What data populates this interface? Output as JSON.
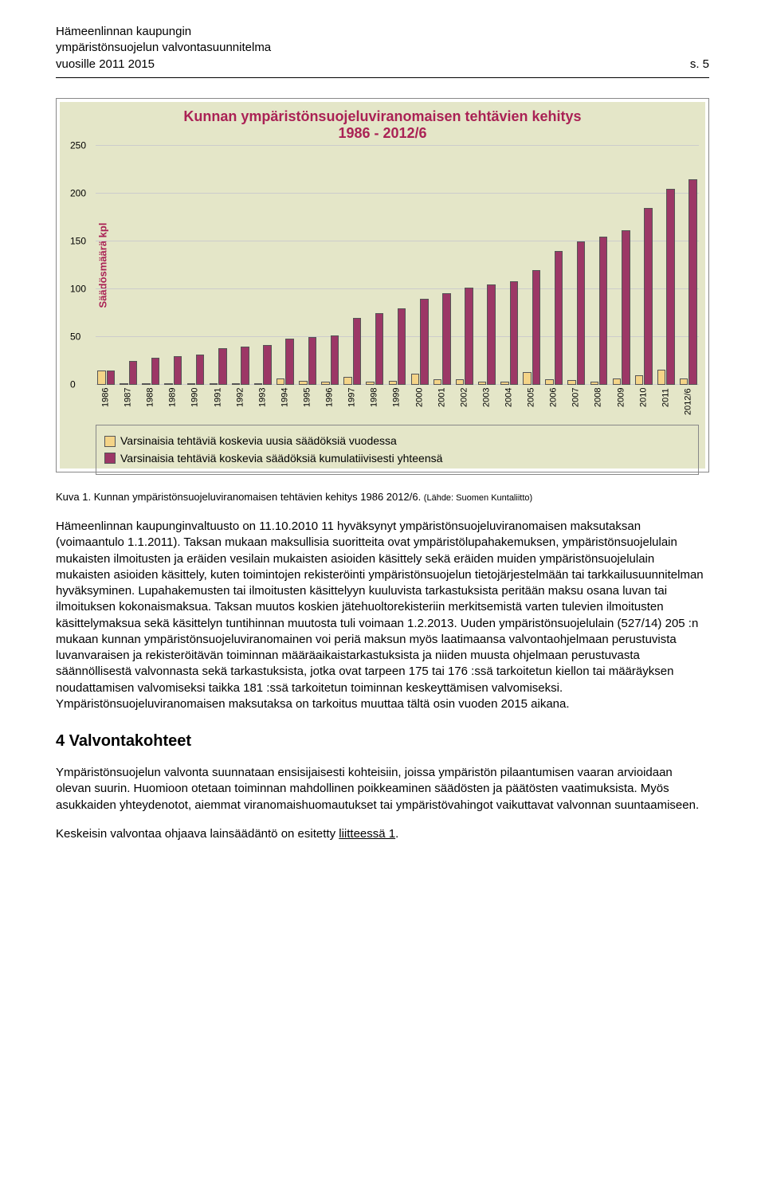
{
  "header": {
    "line1": "Hämeenlinnan kaupungin",
    "line2": "ympäristönsuojelun valvontasuunnitelma",
    "line3": "vuosille 2011 2015",
    "pageno": "s. 5"
  },
  "chart": {
    "type": "bar",
    "title_line1": "Kunnan ympäristönsuojeluviranomaisen tehtävien kehitys",
    "title_line2": "1986 - 2012/6",
    "title_color": "#aa2255",
    "background_color": "#e4e6c8",
    "ylabel": "Säädösmäärä kpl",
    "ylim": [
      0,
      250
    ],
    "ytick_step": 50,
    "yticks": [
      0,
      50,
      100,
      150,
      200,
      250
    ],
    "categories": [
      "1986",
      "1987",
      "1988",
      "1989",
      "1990",
      "1991",
      "1992",
      "1993",
      "1994",
      "1995",
      "1996",
      "1997",
      "1998",
      "1999",
      "2000",
      "2001",
      "2002",
      "2003",
      "2004",
      "2005",
      "2006",
      "2007",
      "2008",
      "2009",
      "2010",
      "2011",
      "2012/6"
    ],
    "series": [
      {
        "name": "Varsinaisia tehtäviä koskevia uusia säädöksiä vuodessa",
        "color": "#f4d488",
        "values": [
          15,
          2,
          1,
          2,
          1,
          2,
          2,
          2,
          7,
          4,
          3,
          8,
          3,
          4,
          12,
          6,
          6,
          3,
          3,
          13,
          6,
          5,
          3,
          7,
          10,
          16,
          7
        ]
      },
      {
        "name": "Varsinaisia tehtäviä koskevia säädöksiä kumulatiivisesti yhteensä",
        "color": "#9c3766",
        "values": [
          15,
          25,
          28,
          30,
          32,
          38,
          40,
          42,
          48,
          50,
          52,
          70,
          75,
          80,
          90,
          96,
          102,
          105,
          108,
          120,
          140,
          150,
          155,
          162,
          185,
          205,
          215
        ]
      }
    ],
    "grid_color": "#cccccc",
    "border_color": "#888888",
    "label_fontsize": 12,
    "title_fontsize": 18
  },
  "caption": {
    "prefix": "Kuva 1. Kunnan ympäristönsuojeluviranomaisen tehtävien kehitys 1986 2012/6. ",
    "source": "(Lähde: Suomen Kuntaliitto)"
  },
  "body1": "Hämeenlinnan kaupunginvaltuusto on 11.10.2010 11 hyväksynyt ympäristönsuojeluviranomaisen maksutaksan (voimaantulo 1.1.2011). Taksan mukaan maksullisia suoritteita ovat ympäristölupahakemuksen, ympäristönsuojelulain mukaisten ilmoitusten ja eräiden vesilain mukaisten asioiden käsittely sekä eräiden muiden ympäristönsuojelulain mukaisten asioiden käsittely, kuten toimintojen rekisteröinti ympäristönsuojelun tietojärjestelmään tai tarkkailusuunnitelman hyväksyminen. Lupahakemusten tai ilmoitusten käsittelyyn kuuluvista tarkastuksista peritään maksu osana luvan tai ilmoituksen kokonaismaksua. Taksan muutos koskien jätehuoltorekisteriin merkitsemistä varten tulevien ilmoitusten käsittelymaksua sekä käsittelyn tuntihinnan muutosta tuli voimaan 1.2.2013. Uuden ympäristönsuojelulain (527/14) 205 :n mukaan kunnan ympäristönsuojeluviranomainen voi periä maksun myös laatimaansa valvontaohjelmaan perustuvista luvanvaraisen ja rekisteröitävän toiminnan määräaikaistarkastuksista ja niiden muusta ohjelmaan perustuvasta säännöllisestä valvonnasta sekä tarkastuksista, jotka ovat tarpeen 175 tai 176 :ssä tarkoitetun kiellon tai määräyksen noudattamisen valvomiseksi taikka 181 :ssä tarkoitetun toiminnan keskeyttämisen valvomiseksi. Ympäristönsuojeluviranomaisen maksutaksa on tarkoitus muuttaa tältä osin vuoden 2015 aikana.",
  "section_heading": "4 Valvontakohteet",
  "body2": "Ympäristönsuojelun valvonta suunnataan ensisijaisesti kohteisiin, joissa ympäristön pilaantumisen vaaran arvioidaan olevan suurin. Huomioon otetaan toiminnan mahdollinen poikkeaminen säädösten ja päätösten vaatimuksista. Myös asukkaiden yhteydenotot, aiemmat viranomaishuomautukset tai ympäristövahingot vaikuttavat valvonnan suuntaamiseen.",
  "body3_prefix": "Keskeisin valvontaa ohjaava lainsäädäntö on esitetty ",
  "body3_link": "liitteessä 1",
  "body3_suffix": "."
}
